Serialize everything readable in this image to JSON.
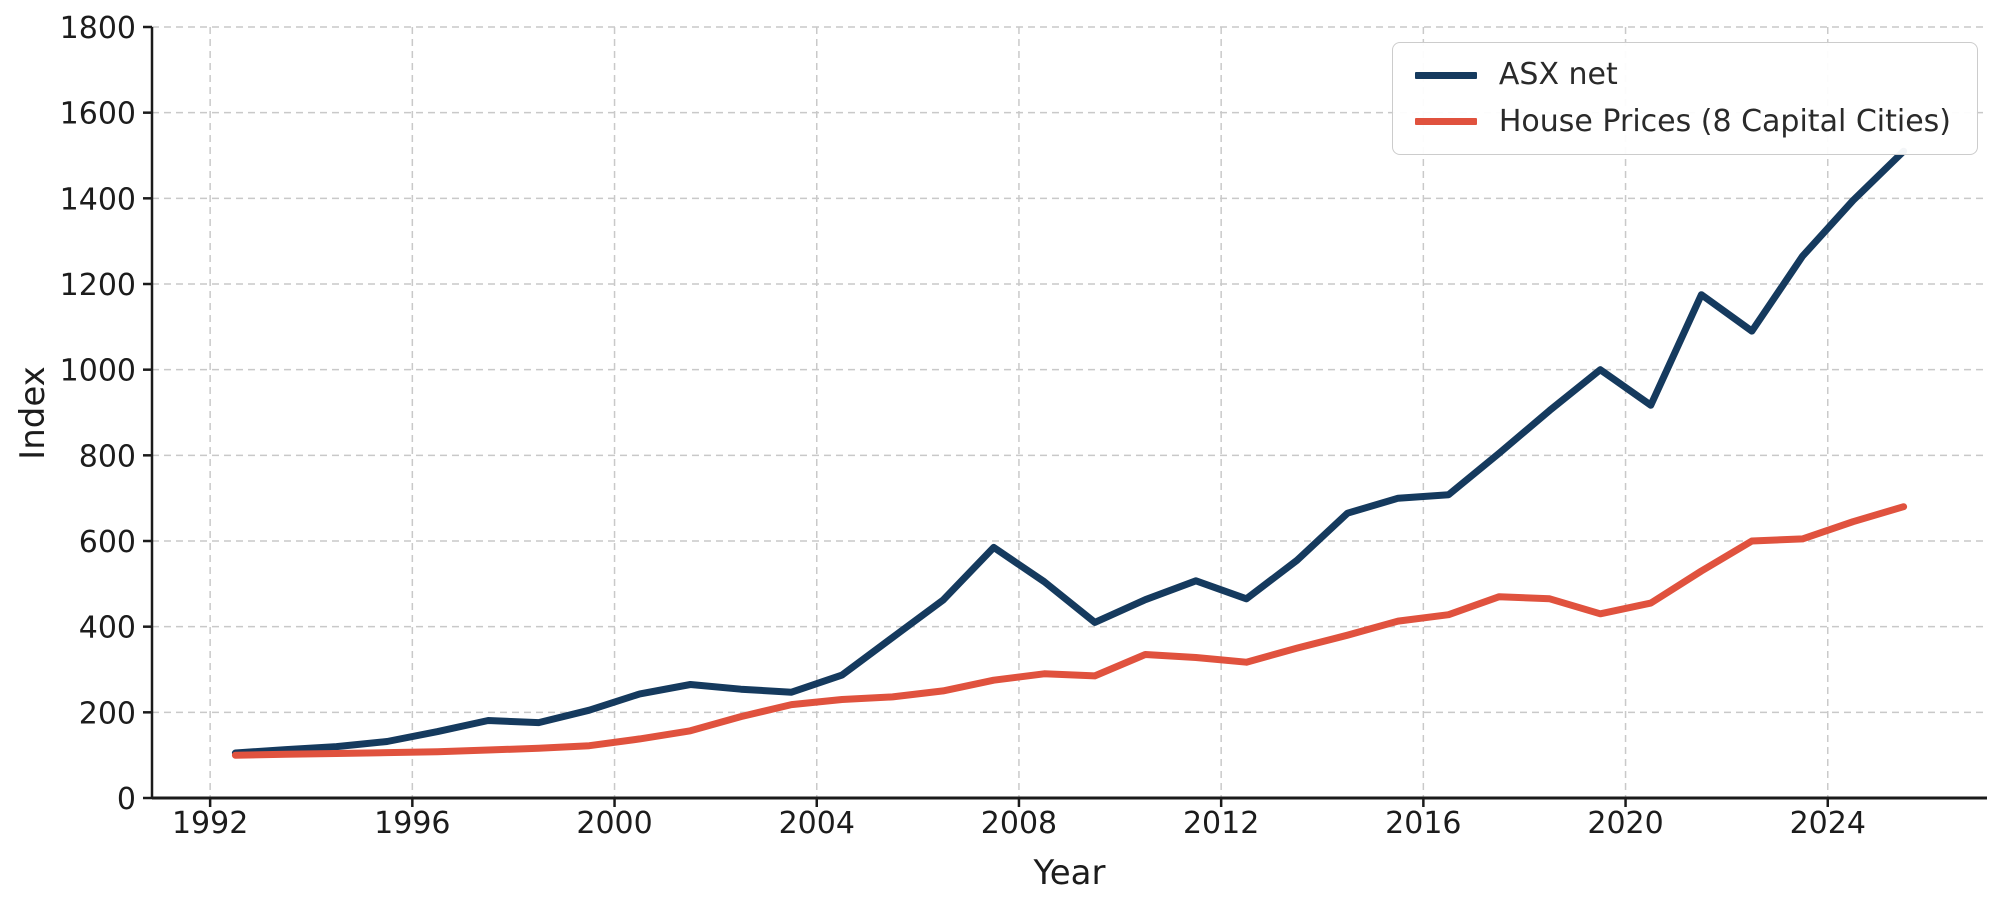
{
  "chart_data": {
    "type": "line",
    "title": "",
    "xlabel": "Year",
    "ylabel": "Index",
    "x": [
      1992.5,
      1993.5,
      1994.5,
      1995.5,
      1996.5,
      1997.5,
      1998.5,
      1999.5,
      2000.5,
      2001.5,
      2002.5,
      2003.5,
      2004.5,
      2005.5,
      2006.5,
      2007.5,
      2008.5,
      2009.5,
      2010.5,
      2011.5,
      2012.5,
      2013.5,
      2014.5,
      2015.5,
      2016.5,
      2017.5,
      2018.5,
      2019.5,
      2020.5,
      2021.5,
      2022.5,
      2023.5,
      2024.5,
      2025.5
    ],
    "series": [
      {
        "name": "ASX net",
        "color": "#153a5e",
        "values": [
          105,
          113,
          120,
          132,
          155,
          181,
          176,
          205,
          243,
          265,
          254,
          247,
          287,
          375,
          462,
          585,
          505,
          410,
          463,
          507,
          465,
          555,
          665,
          700,
          708,
          805,
          905,
          1000,
          917,
          1175,
          1090,
          1265,
          1395,
          1510
        ]
      },
      {
        "name": "House Prices (8 Capital Cities)",
        "color": "#e0523e",
        "values": [
          100,
          102,
          104,
          106,
          108,
          112,
          116,
          122,
          138,
          157,
          190,
          218,
          230,
          236,
          250,
          275,
          290,
          285,
          335,
          328,
          317,
          350,
          380,
          413,
          428,
          470,
          465,
          430,
          455,
          530,
          600,
          605,
          645,
          680
        ]
      }
    ],
    "xlim": [
      1990.85,
      2027.15
    ],
    "ylim": [
      0,
      1800
    ],
    "x_ticks": [
      1992,
      1996,
      2000,
      2004,
      2008,
      2012,
      2016,
      2020,
      2024
    ],
    "y_ticks": [
      0,
      200,
      400,
      600,
      800,
      1000,
      1200,
      1400,
      1600,
      1800
    ],
    "grid": true,
    "grid_style": "dashed",
    "legend_position": "upper right"
  },
  "style": {
    "grid_color": "#c9c9c9",
    "spine_color": "#1b1b1b",
    "tick_label_color": "#1c1c1c",
    "background_color": "#ffffff"
  }
}
